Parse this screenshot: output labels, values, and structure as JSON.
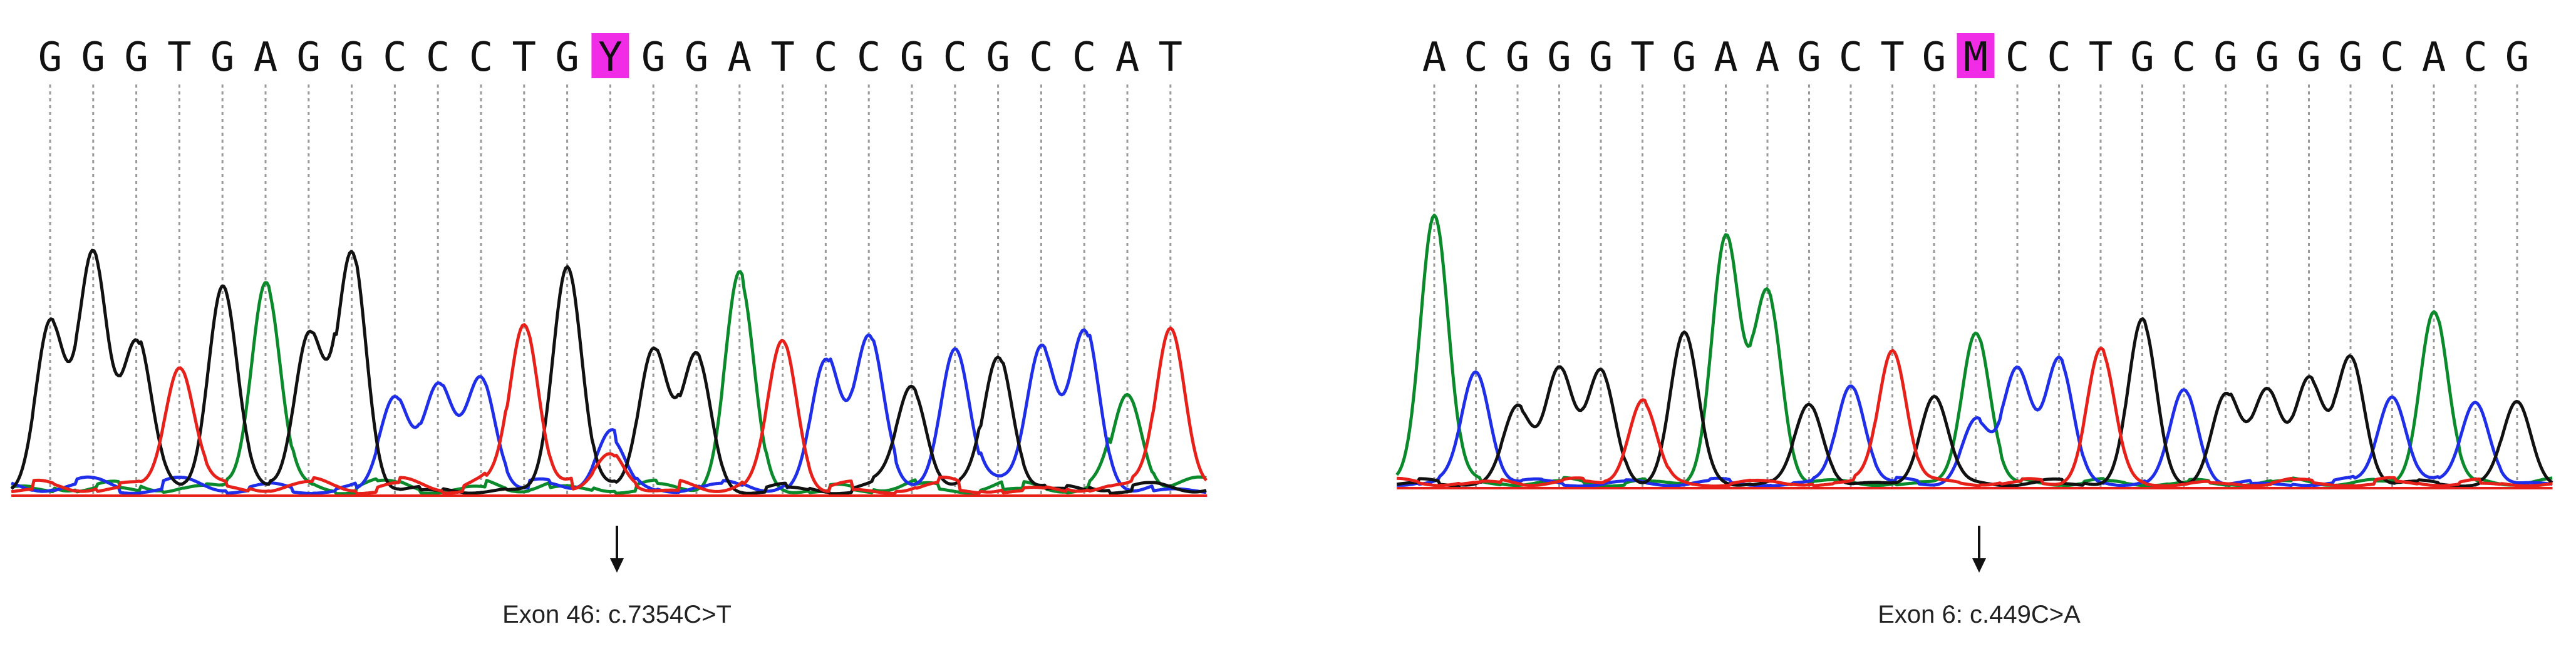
{
  "colors": {
    "A": "#0a8a2a",
    "C": "#1f2ee8",
    "G": "#111111",
    "T": "#e8201a",
    "highlight": "#f02ce6",
    "guide": "#9a9a9a",
    "baseline": "#e8201a"
  },
  "chart_data": [
    {
      "type": "line",
      "title": "",
      "sequence": "GGGTGAGGCCCTGYGGATCCGCGCCAT",
      "bases": [
        "G",
        "G",
        "G",
        "T",
        "G",
        "A",
        "G",
        "G",
        "C",
        "C",
        "C",
        "T",
        "G",
        "Y",
        "G",
        "G",
        "A",
        "T",
        "C",
        "C",
        "G",
        "C",
        "G",
        "C",
        "C",
        "A",
        "T"
      ],
      "variant_index": 13,
      "variant_code": "Y",
      "peak_heights": [
        0.55,
        0.8,
        0.5,
        0.42,
        0.68,
        0.7,
        0.52,
        0.81,
        0.32,
        0.34,
        0.38,
        0.57,
        0.77,
        0.18,
        0.49,
        0.46,
        0.72,
        0.5,
        0.44,
        0.53,
        0.35,
        0.49,
        0.46,
        0.49,
        0.53,
        0.33,
        0.56
      ],
      "secondary_peak": {
        "base": "T",
        "height": 0.13
      },
      "annotation": "Exon 46: c.7354C>T"
    },
    {
      "type": "line",
      "title": "",
      "sequence": "ACGGGTGAAGCTGMCCTGCGGGGCACG",
      "bases": [
        "A",
        "C",
        "G",
        "G",
        "G",
        "T",
        "G",
        "A",
        "A",
        "G",
        "C",
        "T",
        "G",
        "M",
        "C",
        "C",
        "T",
        "G",
        "C",
        "G",
        "G",
        "G",
        "G",
        "C",
        "A",
        "C",
        "G"
      ],
      "variant_index": 13,
      "variant_code": "M",
      "peak_heights": [
        0.92,
        0.38,
        0.25,
        0.4,
        0.38,
        0.28,
        0.5,
        0.84,
        0.65,
        0.27,
        0.34,
        0.46,
        0.3,
        0.52,
        0.39,
        0.42,
        0.45,
        0.55,
        0.32,
        0.3,
        0.32,
        0.35,
        0.43,
        0.3,
        0.59,
        0.28,
        0.27
      ],
      "secondary_peak": {
        "base": "C",
        "height": 0.21
      },
      "annotation": "Exon 6: c.449C>A"
    }
  ]
}
